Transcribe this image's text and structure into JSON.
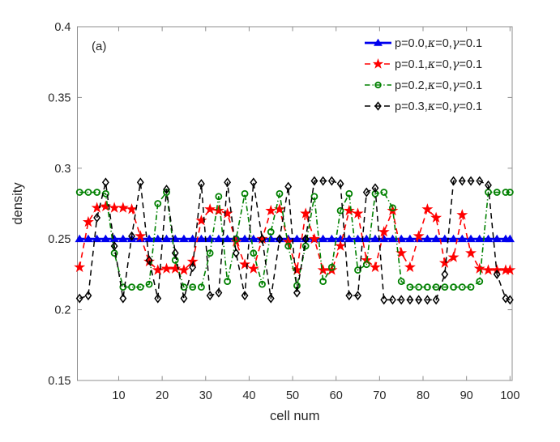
{
  "figure": {
    "annotation": "(a)",
    "background": "#ffffff"
  },
  "chart_data": {
    "type": "line",
    "title": "",
    "xlabel": "cell num",
    "ylabel": "density",
    "xlim": [
      0.5,
      100.5
    ],
    "ylim": [
      0.15,
      0.4
    ],
    "xticks": [
      10,
      20,
      30,
      40,
      50,
      60,
      70,
      80,
      90,
      100
    ],
    "yticks": [
      0.15,
      0.2,
      0.25,
      0.3,
      0.35,
      0.4
    ],
    "grid": false,
    "box": true,
    "axis_color": "#8f8f8f",
    "text_color": "#262626",
    "legend": {
      "location": "northeast-inside",
      "box": false
    },
    "annotation": "(a)",
    "x": [
      1,
      3,
      5,
      7,
      9,
      11,
      13,
      15,
      17,
      19,
      21,
      23,
      25,
      27,
      29,
      31,
      33,
      35,
      37,
      39,
      41,
      43,
      45,
      47,
      49,
      51,
      53,
      55,
      57,
      59,
      61,
      63,
      65,
      67,
      69,
      71,
      73,
      75,
      77,
      79,
      81,
      83,
      85,
      87,
      89,
      91,
      93,
      95,
      97,
      99,
      100
    ],
    "series": [
      {
        "name": "p=0.0,κ=0,γ=0.1",
        "color": "#0000ee",
        "line_style": "solid",
        "line_width": 2.8,
        "marker": "triangle",
        "marker_filled": true,
        "values": [
          0.25,
          0.25,
          0.25,
          0.25,
          0.25,
          0.25,
          0.25,
          0.25,
          0.25,
          0.25,
          0.25,
          0.25,
          0.25,
          0.25,
          0.25,
          0.25,
          0.25,
          0.25,
          0.25,
          0.25,
          0.25,
          0.25,
          0.25,
          0.25,
          0.25,
          0.25,
          0.25,
          0.25,
          0.25,
          0.25,
          0.25,
          0.25,
          0.25,
          0.25,
          0.25,
          0.25,
          0.25,
          0.25,
          0.25,
          0.25,
          0.25,
          0.25,
          0.25,
          0.25,
          0.25,
          0.25,
          0.25,
          0.25,
          0.25,
          0.25,
          0.25
        ]
      },
      {
        "name": "p=0.1,κ=0,γ=0.1",
        "color": "#ff0000",
        "line_style": "dashed",
        "line_width": 1.6,
        "marker": "star",
        "marker_filled": true,
        "values": [
          0.23,
          0.262,
          0.272,
          0.273,
          0.272,
          0.272,
          0.271,
          0.252,
          0.234,
          0.228,
          0.229,
          0.229,
          0.228,
          0.234,
          0.263,
          0.271,
          0.27,
          0.268,
          0.248,
          0.232,
          0.229,
          0.25,
          0.27,
          0.271,
          0.248,
          0.228,
          0.268,
          0.25,
          0.228,
          0.228,
          0.245,
          0.27,
          0.268,
          0.235,
          0.23,
          0.255,
          0.27,
          0.24,
          0.23,
          0.252,
          0.271,
          0.265,
          0.233,
          0.237,
          0.267,
          0.24,
          0.229,
          0.228,
          0.228,
          0.228,
          0.228
        ]
      },
      {
        "name": "p=0.2,κ=0,γ=0.1",
        "color": "#008000",
        "line_style": "dashdot",
        "line_width": 1.6,
        "marker": "circle",
        "marker_filled": false,
        "values": [
          0.283,
          0.283,
          0.283,
          0.282,
          0.24,
          0.216,
          0.216,
          0.216,
          0.218,
          0.275,
          0.283,
          0.235,
          0.216,
          0.216,
          0.216,
          0.24,
          0.28,
          0.22,
          0.25,
          0.282,
          0.24,
          0.218,
          0.255,
          0.282,
          0.245,
          0.217,
          0.245,
          0.28,
          0.22,
          0.23,
          0.27,
          0.282,
          0.228,
          0.232,
          0.282,
          0.283,
          0.272,
          0.22,
          0.216,
          0.216,
          0.216,
          0.216,
          0.216,
          0.216,
          0.216,
          0.216,
          0.22,
          0.283,
          0.283,
          0.283,
          0.283
        ]
      },
      {
        "name": "p=0.3,κ=0,γ=0.1",
        "color": "#000000",
        "line_style": "dashed",
        "line_width": 1.5,
        "marker": "diamond",
        "marker_filled": false,
        "values": [
          0.208,
          0.21,
          0.265,
          0.29,
          0.245,
          0.208,
          0.252,
          0.29,
          0.235,
          0.208,
          0.285,
          0.24,
          0.208,
          0.23,
          0.289,
          0.21,
          0.212,
          0.29,
          0.24,
          0.21,
          0.29,
          0.25,
          0.208,
          0.25,
          0.287,
          0.212,
          0.25,
          0.291,
          0.291,
          0.291,
          0.289,
          0.21,
          0.21,
          0.283,
          0.286,
          0.207,
          0.207,
          0.207,
          0.207,
          0.207,
          0.207,
          0.207,
          0.225,
          0.291,
          0.291,
          0.291,
          0.291,
          0.288,
          0.225,
          0.208,
          0.207
        ]
      }
    ]
  }
}
